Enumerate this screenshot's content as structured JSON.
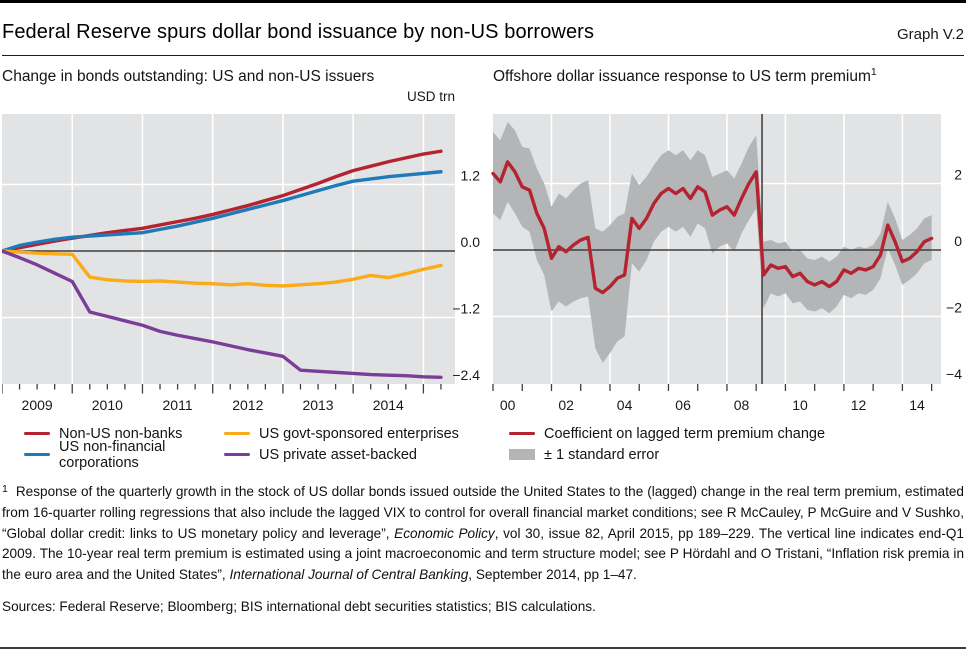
{
  "header": {
    "title": "Federal Reserve spurs dollar bond issuance by non-US borrowers",
    "graph_label": "Graph V.2"
  },
  "left_panel": {
    "title": "Change in bonds outstanding: US and non-US issuers",
    "unit": "USD trn",
    "legend": [
      {
        "label": "Non-US non-banks",
        "color": "#b4232f",
        "swatch": "line"
      },
      {
        "label": "US non-financial corporations",
        "color": "#1e7ab8",
        "swatch": "line"
      },
      {
        "label": "US govt-sponsored enterprises",
        "color": "#fbab18",
        "swatch": "line"
      },
      {
        "label": "US private asset-backed",
        "color": "#7a3e98",
        "swatch": "line"
      }
    ]
  },
  "right_panel": {
    "title": "Offshore dollar issuance response to US term premium",
    "title_sup": "1",
    "legend": [
      {
        "label": "Coefficient on lagged term premium change",
        "color": "#b4232f",
        "swatch": "line"
      },
      {
        "label": "± 1 standard error",
        "color": "#b4b5b7",
        "swatch": "box"
      }
    ]
  },
  "chart_data": [
    {
      "type": "line",
      "title": "Change in bonds outstanding: US and non-US issuers",
      "unit": "USD trn",
      "x_start": 2009.0,
      "x_step": 0.25,
      "x_domain": [
        2009.0,
        2015.45
      ],
      "ylim": [
        -2.4,
        2.47
      ],
      "grid": true,
      "legend_position": "below",
      "yticks": [
        {
          "v": 1.2,
          "label": "1.2"
        },
        {
          "v": 0.0,
          "label": "0.0"
        },
        {
          "v": -1.2,
          "label": "−1.2"
        },
        {
          "v": -2.4,
          "label": "−2.4"
        }
      ],
      "year_gridlines": [
        2010,
        2011,
        2012,
        2013,
        2014,
        2015
      ],
      "x_labels": [
        {
          "text": "2009",
          "center_year": 2009.5
        },
        {
          "text": "2010",
          "center_year": 2010.5
        },
        {
          "text": "2011",
          "center_year": 2011.5
        },
        {
          "text": "2012",
          "center_year": 2012.5
        },
        {
          "text": "2013",
          "center_year": 2013.5
        },
        {
          "text": "2014",
          "center_year": 2014.5
        }
      ],
      "series": [
        {
          "name": "Non-US non-banks",
          "color": "#b4232f",
          "values": [
            0,
            0.06,
            0.12,
            0.18,
            0.23,
            0.28,
            0.33,
            0.37,
            0.41,
            0.47,
            0.53,
            0.59,
            0.66,
            0.74,
            0.82,
            0.91,
            1.0,
            1.11,
            1.22,
            1.34,
            1.45,
            1.53,
            1.61,
            1.68,
            1.75,
            1.8
          ]
        },
        {
          "name": "US non-financial corporations",
          "color": "#1e7ab8",
          "values": [
            0,
            0.1,
            0.16,
            0.21,
            0.25,
            0.27,
            0.29,
            0.31,
            0.33,
            0.39,
            0.45,
            0.52,
            0.59,
            0.67,
            0.75,
            0.83,
            0.91,
            1.0,
            1.09,
            1.18,
            1.26,
            1.3,
            1.34,
            1.37,
            1.4,
            1.43
          ]
        },
        {
          "name": "US govt-sponsored enterprises",
          "color": "#fbab18",
          "values": [
            0,
            -0.02,
            -0.04,
            -0.05,
            -0.06,
            -0.47,
            -0.52,
            -0.54,
            -0.55,
            -0.54,
            -0.56,
            -0.58,
            -0.59,
            -0.61,
            -0.59,
            -0.62,
            -0.63,
            -0.61,
            -0.59,
            -0.56,
            -0.51,
            -0.44,
            -0.48,
            -0.41,
            -0.33,
            -0.26
          ]
        },
        {
          "name": "US private asset-backed",
          "color": "#7a3e98",
          "values": [
            0,
            -0.12,
            -0.25,
            -0.4,
            -0.55,
            -1.1,
            -1.18,
            -1.26,
            -1.34,
            -1.45,
            -1.52,
            -1.58,
            -1.64,
            -1.71,
            -1.78,
            -1.84,
            -1.9,
            -2.15,
            -2.17,
            -2.19,
            -2.21,
            -2.23,
            -2.24,
            -2.25,
            -2.27,
            -2.28
          ]
        }
      ]
    },
    {
      "type": "line_with_band",
      "title": "Offshore dollar issuance response to US term premium",
      "x_start": 2000.0,
      "x_step": 0.25,
      "x_domain": [
        2000.0,
        2015.32
      ],
      "ylim": [
        -4.0,
        4.09
      ],
      "grid": true,
      "legend_position": "below",
      "vertical_line_year": 2009.2,
      "vertical_line_note": "end-Q1 2009",
      "yticks": [
        {
          "v": 2,
          "label": "2"
        },
        {
          "v": 0,
          "label": "0"
        },
        {
          "v": -2,
          "label": "−2"
        },
        {
          "v": -4,
          "label": "−4"
        }
      ],
      "year_gridlines": [
        2002,
        2004,
        2006,
        2008,
        2010,
        2012,
        2014
      ],
      "x_labels": [
        {
          "text": "00",
          "center_year": 2000.5
        },
        {
          "text": "02",
          "center_year": 2002.5
        },
        {
          "text": "04",
          "center_year": 2004.5
        },
        {
          "text": "06",
          "center_year": 2006.5
        },
        {
          "text": "08",
          "center_year": 2008.5
        },
        {
          "text": "10",
          "center_year": 2010.5
        },
        {
          "text": "12",
          "center_year": 2012.5
        },
        {
          "text": "14",
          "center_year": 2014.5
        }
      ],
      "series": [
        {
          "name": "Coefficient on lagged term premium change",
          "color": "#b4232f",
          "values": [
            2.3,
            2.05,
            2.65,
            2.35,
            1.9,
            1.8,
            1.1,
            0.65,
            -0.25,
            0.1,
            -0.05,
            0.15,
            0.3,
            0.38,
            -1.15,
            -1.28,
            -1.1,
            -0.85,
            -0.75,
            0.95,
            0.65,
            0.95,
            1.4,
            1.7,
            1.85,
            1.7,
            1.85,
            1.55,
            1.9,
            1.75,
            1.05,
            1.2,
            1.3,
            1.05,
            1.55,
            2.0,
            2.35,
            -0.75,
            -0.45,
            -0.55,
            -0.5,
            -0.8,
            -0.7,
            -0.95,
            -1.05,
            -0.95,
            -1.1,
            -0.95,
            -0.6,
            -0.7,
            -0.55,
            -0.6,
            -0.5,
            -0.15,
            0.75,
            0.25,
            -0.35,
            -0.25,
            -0.05,
            0.25,
            0.35
          ]
        }
      ],
      "band": {
        "name": "± 1 standard error",
        "color": "#b4b5b7",
        "upper": [
          3.55,
          3.3,
          3.85,
          3.6,
          3.1,
          3.05,
          2.45,
          2.0,
          1.3,
          1.7,
          1.55,
          1.8,
          2.0,
          2.1,
          0.65,
          0.55,
          0.75,
          1.0,
          1.1,
          2.3,
          1.95,
          2.2,
          2.55,
          2.85,
          3.0,
          2.85,
          3.0,
          2.7,
          3.0,
          2.85,
          2.2,
          2.3,
          2.4,
          2.15,
          2.6,
          3.1,
          3.45,
          0.25,
          0.3,
          0.2,
          0.25,
          -0.05,
          0.0,
          -0.25,
          -0.3,
          -0.2,
          -0.35,
          -0.2,
          0.1,
          0.0,
          0.1,
          0.05,
          0.15,
          0.5,
          1.45,
          0.95,
          0.3,
          0.45,
          0.65,
          0.95,
          1.05
        ],
        "lower": [
          1.1,
          0.9,
          1.45,
          1.1,
          0.7,
          0.55,
          -0.3,
          -0.75,
          -1.85,
          -1.55,
          -1.7,
          -1.55,
          -1.45,
          -1.4,
          -2.95,
          -3.4,
          -3.1,
          -2.75,
          -2.6,
          -0.4,
          -0.65,
          -0.3,
          0.25,
          0.55,
          0.7,
          0.55,
          0.7,
          0.4,
          0.8,
          0.65,
          -0.1,
          0.1,
          0.2,
          -0.05,
          0.5,
          0.9,
          1.25,
          -1.75,
          -1.3,
          -1.4,
          -1.3,
          -1.6,
          -1.55,
          -1.8,
          -1.85,
          -1.75,
          -1.9,
          -1.7,
          -1.35,
          -1.45,
          -1.3,
          -1.35,
          -1.2,
          -0.85,
          0.05,
          -0.45,
          -1.05,
          -0.9,
          -0.7,
          -0.4,
          -0.3
        ]
      }
    }
  ],
  "colors": {
    "panel_bg": "#e2e3e4",
    "band": "#b4b5b7",
    "grid": "#ffffff",
    "zero_line": "#3f3f3f",
    "accent_red": "#b4232f",
    "accent_blue": "#1e7ab8",
    "accent_yellow": "#fbab18",
    "accent_purple": "#7a3e98"
  },
  "footnote": {
    "marker": "1",
    "segments": [
      {
        "text": "Response of the quarterly growth in the stock of US dollar bonds issued outside the United States to the (lagged) change in the real term premium, estimated from 16-quarter rolling regressions that also include the lagged VIX to control for overall financial market conditions; see R McCauley, P McGuire and V Sushko, “Global dollar credit: links to US monetary policy and leverage”, ",
        "italic": false
      },
      {
        "text": "Economic Policy",
        "italic": true
      },
      {
        "text": ", vol 30, issue 82, April 2015, pp 189–229. The vertical line indicates end-Q1 2009. The 10-year real term premium is estimated using a joint macroeconomic and term structure model; see P Hördahl and O Tristani, “Inflation risk premia in the euro area and the United States”, ",
        "italic": false
      },
      {
        "text": "International Journal of Central Banking",
        "italic": true
      },
      {
        "text": ", September 2014, pp 1–47.",
        "italic": false
      }
    ]
  },
  "sources": "Sources: Federal Reserve; Bloomberg; BIS international debt securities statistics; BIS calculations."
}
